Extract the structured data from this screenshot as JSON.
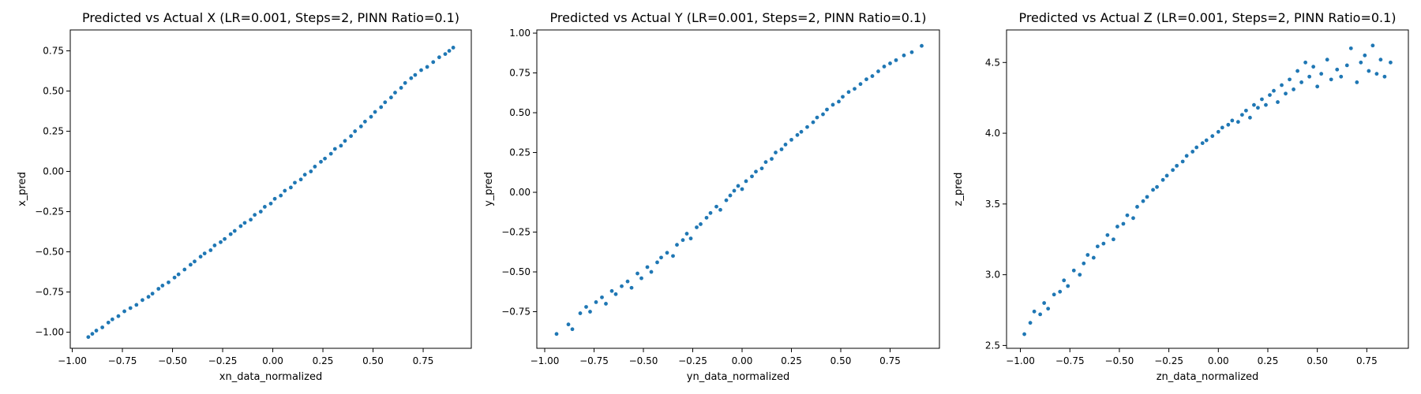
{
  "figure": {
    "background": "#ffffff",
    "marker_color": "#1f77b4"
  },
  "chart_data": [
    {
      "type": "scatter",
      "title": "Predicted vs Actual X (LR=0.001, Steps=2, PINN Ratio=0.1)",
      "xlabel": "xn_data_normalized",
      "ylabel": "x_pred",
      "xlim": [
        -1.01,
        0.99
      ],
      "ylim": [
        -1.1,
        0.88
      ],
      "xticks": [
        -1.0,
        -0.75,
        -0.5,
        -0.25,
        0.0,
        0.25,
        0.5,
        0.75
      ],
      "xtick_labels": [
        "−1.00",
        "−0.75",
        "−0.50",
        "−0.25",
        "0.00",
        "0.25",
        "0.50",
        "0.75"
      ],
      "yticks": [
        -1.0,
        -0.75,
        -0.5,
        -0.25,
        0.0,
        0.25,
        0.5,
        0.75
      ],
      "ytick_labels": [
        "−1.00",
        "−0.75",
        "−0.50",
        "−0.25",
        "0.00",
        "0.25",
        "0.50",
        "0.75"
      ],
      "grid": false,
      "points": [
        [
          -0.92,
          -1.03
        ],
        [
          -0.9,
          -1.01
        ],
        [
          -0.88,
          -0.99
        ],
        [
          -0.85,
          -0.97
        ],
        [
          -0.82,
          -0.94
        ],
        [
          -0.8,
          -0.92
        ],
        [
          -0.77,
          -0.9
        ],
        [
          -0.74,
          -0.87
        ],
        [
          -0.71,
          -0.85
        ],
        [
          -0.68,
          -0.83
        ],
        [
          -0.65,
          -0.8
        ],
        [
          -0.62,
          -0.78
        ],
        [
          -0.6,
          -0.76
        ],
        [
          -0.57,
          -0.73
        ],
        [
          -0.55,
          -0.71
        ],
        [
          -0.52,
          -0.69
        ],
        [
          -0.49,
          -0.66
        ],
        [
          -0.47,
          -0.64
        ],
        [
          -0.44,
          -0.61
        ],
        [
          -0.41,
          -0.58
        ],
        [
          -0.39,
          -0.56
        ],
        [
          -0.36,
          -0.53
        ],
        [
          -0.34,
          -0.51
        ],
        [
          -0.31,
          -0.49
        ],
        [
          -0.29,
          -0.46
        ],
        [
          -0.26,
          -0.44
        ],
        [
          -0.24,
          -0.42
        ],
        [
          -0.21,
          -0.39
        ],
        [
          -0.19,
          -0.37
        ],
        [
          -0.16,
          -0.34
        ],
        [
          -0.14,
          -0.32
        ],
        [
          -0.11,
          -0.3
        ],
        [
          -0.09,
          -0.27
        ],
        [
          -0.06,
          -0.25
        ],
        [
          -0.04,
          -0.22
        ],
        [
          -0.01,
          -0.2
        ],
        [
          0.01,
          -0.17
        ],
        [
          0.04,
          -0.15
        ],
        [
          0.06,
          -0.12
        ],
        [
          0.09,
          -0.1
        ],
        [
          0.11,
          -0.07
        ],
        [
          0.14,
          -0.05
        ],
        [
          0.16,
          -0.02
        ],
        [
          0.19,
          0.0
        ],
        [
          0.21,
          0.03
        ],
        [
          0.24,
          0.06
        ],
        [
          0.26,
          0.08
        ],
        [
          0.29,
          0.11
        ],
        [
          0.31,
          0.14
        ],
        [
          0.34,
          0.16
        ],
        [
          0.36,
          0.19
        ],
        [
          0.39,
          0.22
        ],
        [
          0.41,
          0.25
        ],
        [
          0.44,
          0.28
        ],
        [
          0.46,
          0.31
        ],
        [
          0.49,
          0.34
        ],
        [
          0.51,
          0.37
        ],
        [
          0.54,
          0.4
        ],
        [
          0.56,
          0.43
        ],
        [
          0.59,
          0.46
        ],
        [
          0.61,
          0.49
        ],
        [
          0.64,
          0.52
        ],
        [
          0.66,
          0.55
        ],
        [
          0.69,
          0.58
        ],
        [
          0.71,
          0.6
        ],
        [
          0.74,
          0.63
        ],
        [
          0.77,
          0.65
        ],
        [
          0.8,
          0.68
        ],
        [
          0.83,
          0.71
        ],
        [
          0.86,
          0.73
        ],
        [
          0.88,
          0.75
        ],
        [
          0.9,
          0.77
        ]
      ]
    },
    {
      "type": "scatter",
      "title": "Predicted vs Actual Y (LR=0.001, Steps=2, PINN Ratio=0.1)",
      "xlabel": "yn_data_normalized",
      "ylabel": "y_pred",
      "xlim": [
        -1.04,
        1.0
      ],
      "ylim": [
        -0.98,
        1.02
      ],
      "xticks": [
        -1.0,
        -0.75,
        -0.5,
        -0.25,
        0.0,
        0.25,
        0.5,
        0.75
      ],
      "xtick_labels": [
        "−1.00",
        "−0.75",
        "−0.50",
        "−0.25",
        "0.00",
        "0.25",
        "0.50",
        "0.75"
      ],
      "yticks": [
        -0.75,
        -0.5,
        -0.25,
        0.0,
        0.25,
        0.5,
        0.75,
        1.0
      ],
      "ytick_labels": [
        "−0.75",
        "−0.50",
        "−0.25",
        "0.00",
        "0.25",
        "0.50",
        "0.75",
        "1.00"
      ],
      "grid": false,
      "points": [
        [
          -0.94,
          -0.89
        ],
        [
          -0.88,
          -0.83
        ],
        [
          -0.86,
          -0.86
        ],
        [
          -0.82,
          -0.76
        ],
        [
          -0.79,
          -0.72
        ],
        [
          -0.77,
          -0.75
        ],
        [
          -0.74,
          -0.69
        ],
        [
          -0.71,
          -0.66
        ],
        [
          -0.69,
          -0.7
        ],
        [
          -0.66,
          -0.62
        ],
        [
          -0.64,
          -0.64
        ],
        [
          -0.61,
          -0.59
        ],
        [
          -0.58,
          -0.56
        ],
        [
          -0.56,
          -0.6
        ],
        [
          -0.53,
          -0.51
        ],
        [
          -0.51,
          -0.54
        ],
        [
          -0.48,
          -0.47
        ],
        [
          -0.46,
          -0.5
        ],
        [
          -0.43,
          -0.44
        ],
        [
          -0.41,
          -0.41
        ],
        [
          -0.38,
          -0.38
        ],
        [
          -0.35,
          -0.4
        ],
        [
          -0.33,
          -0.33
        ],
        [
          -0.3,
          -0.3
        ],
        [
          -0.28,
          -0.26
        ],
        [
          -0.26,
          -0.29
        ],
        [
          -0.23,
          -0.22
        ],
        [
          -0.21,
          -0.2
        ],
        [
          -0.18,
          -0.16
        ],
        [
          -0.16,
          -0.13
        ],
        [
          -0.13,
          -0.09
        ],
        [
          -0.11,
          -0.11
        ],
        [
          -0.08,
          -0.05
        ],
        [
          -0.06,
          -0.02
        ],
        [
          -0.04,
          0.01
        ],
        [
          -0.02,
          0.04
        ],
        [
          0.0,
          0.02
        ],
        [
          0.02,
          0.07
        ],
        [
          0.05,
          0.1
        ],
        [
          0.07,
          0.13
        ],
        [
          0.1,
          0.15
        ],
        [
          0.12,
          0.19
        ],
        [
          0.15,
          0.21
        ],
        [
          0.17,
          0.25
        ],
        [
          0.2,
          0.27
        ],
        [
          0.22,
          0.3
        ],
        [
          0.25,
          0.33
        ],
        [
          0.28,
          0.36
        ],
        [
          0.3,
          0.38
        ],
        [
          0.33,
          0.41
        ],
        [
          0.36,
          0.44
        ],
        [
          0.38,
          0.47
        ],
        [
          0.41,
          0.49
        ],
        [
          0.43,
          0.52
        ],
        [
          0.46,
          0.55
        ],
        [
          0.49,
          0.57
        ],
        [
          0.51,
          0.6
        ],
        [
          0.54,
          0.63
        ],
        [
          0.57,
          0.65
        ],
        [
          0.6,
          0.68
        ],
        [
          0.63,
          0.71
        ],
        [
          0.66,
          0.73
        ],
        [
          0.69,
          0.76
        ],
        [
          0.72,
          0.79
        ],
        [
          0.75,
          0.81
        ],
        [
          0.78,
          0.83
        ],
        [
          0.82,
          0.86
        ],
        [
          0.86,
          0.88
        ],
        [
          0.91,
          0.92
        ]
      ]
    },
    {
      "type": "scatter",
      "title": "Predicted vs Actual Z (LR=0.001, Steps=2, PINN Ratio=0.1)",
      "xlabel": "zn_data_normalized",
      "ylabel": "z_pred",
      "xlim": [
        -1.07,
        0.96
      ],
      "ylim": [
        2.48,
        4.73
      ],
      "xticks": [
        -1.0,
        -0.75,
        -0.5,
        -0.25,
        0.0,
        0.25,
        0.5,
        0.75
      ],
      "xtick_labels": [
        "−1.00",
        "−0.75",
        "−0.50",
        "−0.25",
        "0.00",
        "0.25",
        "0.50",
        "0.75"
      ],
      "yticks": [
        2.5,
        3.0,
        3.5,
        4.0,
        4.5
      ],
      "ytick_labels": [
        "2.5",
        "3.0",
        "3.5",
        "4.0",
        "4.5"
      ],
      "grid": false,
      "points": [
        [
          -0.98,
          2.58
        ],
        [
          -0.95,
          2.66
        ],
        [
          -0.93,
          2.74
        ],
        [
          -0.9,
          2.72
        ],
        [
          -0.88,
          2.8
        ],
        [
          -0.86,
          2.76
        ],
        [
          -0.83,
          2.86
        ],
        [
          -0.8,
          2.88
        ],
        [
          -0.78,
          2.96
        ],
        [
          -0.76,
          2.92
        ],
        [
          -0.73,
          3.03
        ],
        [
          -0.7,
          3.0
        ],
        [
          -0.68,
          3.08
        ],
        [
          -0.66,
          3.14
        ],
        [
          -0.63,
          3.12
        ],
        [
          -0.61,
          3.2
        ],
        [
          -0.58,
          3.22
        ],
        [
          -0.56,
          3.28
        ],
        [
          -0.53,
          3.25
        ],
        [
          -0.51,
          3.34
        ],
        [
          -0.48,
          3.36
        ],
        [
          -0.46,
          3.42
        ],
        [
          -0.43,
          3.4
        ],
        [
          -0.41,
          3.48
        ],
        [
          -0.38,
          3.52
        ],
        [
          -0.36,
          3.55
        ],
        [
          -0.33,
          3.6
        ],
        [
          -0.31,
          3.62
        ],
        [
          -0.28,
          3.67
        ],
        [
          -0.26,
          3.7
        ],
        [
          -0.23,
          3.74
        ],
        [
          -0.21,
          3.77
        ],
        [
          -0.18,
          3.8
        ],
        [
          -0.16,
          3.84
        ],
        [
          -0.13,
          3.87
        ],
        [
          -0.11,
          3.9
        ],
        [
          -0.08,
          3.93
        ],
        [
          -0.06,
          3.95
        ],
        [
          -0.03,
          3.98
        ],
        [
          0.0,
          4.01
        ],
        [
          0.02,
          4.04
        ],
        [
          0.05,
          4.06
        ],
        [
          0.07,
          4.09
        ],
        [
          0.1,
          4.08
        ],
        [
          0.12,
          4.13
        ],
        [
          0.14,
          4.16
        ],
        [
          0.16,
          4.11
        ],
        [
          0.18,
          4.2
        ],
        [
          0.2,
          4.18
        ],
        [
          0.22,
          4.24
        ],
        [
          0.24,
          4.2
        ],
        [
          0.26,
          4.27
        ],
        [
          0.28,
          4.3
        ],
        [
          0.3,
          4.22
        ],
        [
          0.32,
          4.34
        ],
        [
          0.34,
          4.28
        ],
        [
          0.36,
          4.38
        ],
        [
          0.38,
          4.31
        ],
        [
          0.4,
          4.44
        ],
        [
          0.42,
          4.36
        ],
        [
          0.44,
          4.5
        ],
        [
          0.46,
          4.4
        ],
        [
          0.48,
          4.47
        ],
        [
          0.5,
          4.33
        ],
        [
          0.52,
          4.42
        ],
        [
          0.55,
          4.52
        ],
        [
          0.57,
          4.38
        ],
        [
          0.6,
          4.45
        ],
        [
          0.62,
          4.4
        ],
        [
          0.65,
          4.48
        ],
        [
          0.67,
          4.6
        ],
        [
          0.7,
          4.36
        ],
        [
          0.72,
          4.5
        ],
        [
          0.74,
          4.55
        ],
        [
          0.76,
          4.44
        ],
        [
          0.78,
          4.62
        ],
        [
          0.8,
          4.42
        ],
        [
          0.82,
          4.52
        ],
        [
          0.84,
          4.4
        ],
        [
          0.87,
          4.5
        ]
      ]
    }
  ]
}
